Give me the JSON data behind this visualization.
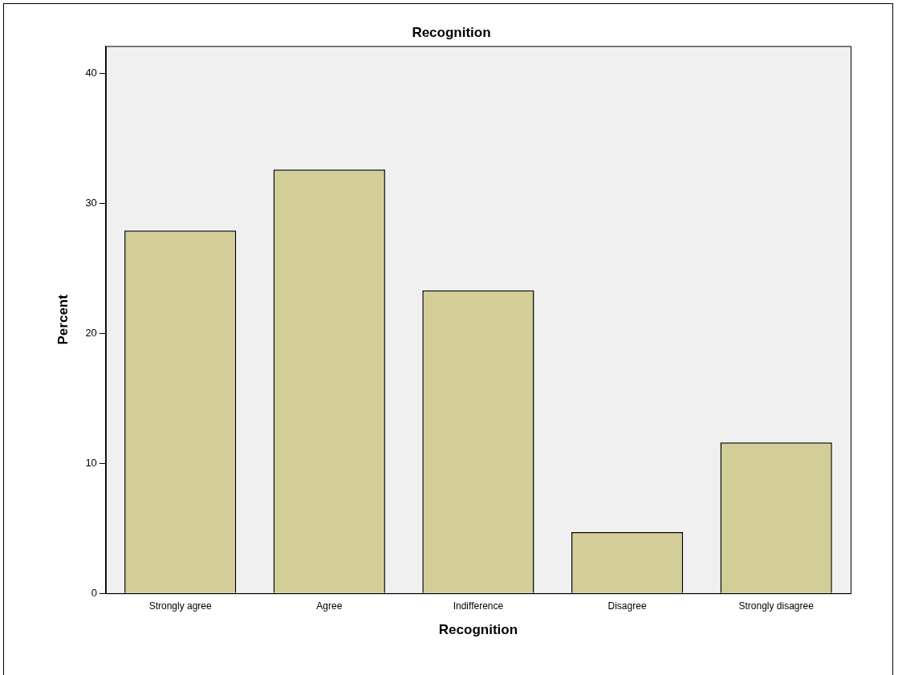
{
  "chart_data": {
    "type": "bar",
    "title": "Recognition",
    "xlabel": "Recognition",
    "ylabel": "Percent",
    "categories": [
      "Strongly agree",
      "Agree",
      "Indifference",
      "Disagree",
      "Strongly disagree"
    ],
    "values": [
      27.9,
      32.6,
      23.3,
      4.7,
      11.6
    ],
    "color": "#d3ce97",
    "ylim": [
      0,
      42.1
    ],
    "yticks": [
      0,
      10,
      20,
      30,
      40
    ],
    "grid": false,
    "legend": false
  }
}
